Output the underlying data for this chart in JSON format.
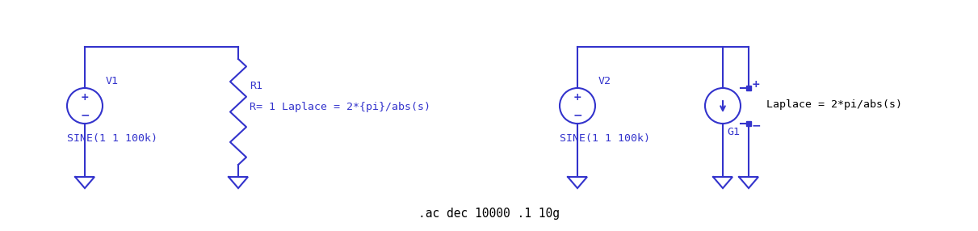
{
  "bg_color": "#ffffff",
  "circuit_color": "#3333cc",
  "text_color_dark": "#000000",
  "line_width": 1.5,
  "circuit1": {
    "label_source": "V1",
    "label_sine": "SINE(1 1 100k)",
    "label_R": "R1",
    "label_R_val": "R= 1 Laplace = 2*{pi}/abs(s)"
  },
  "circuit2": {
    "label_source": "V2",
    "label_sine": "SINE(1 1 100k)",
    "label_G": "G1",
    "label_G_val": "Laplace = 2*pi/abs(s)"
  },
  "bottom_text": ".ac dec 10000 .1 10g",
  "font_size_label": 9.5,
  "font_size_bottom": 10.5
}
